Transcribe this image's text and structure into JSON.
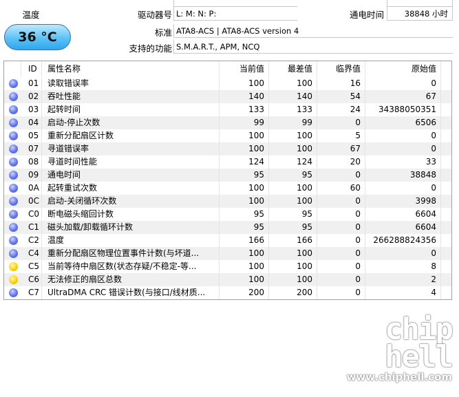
{
  "info": {
    "temperature_label": "温度",
    "temperature": "36 °C",
    "drive_letter_label": "驱动器号",
    "drive_letter": "L: M: N: P:",
    "power_on_label": "通电时间",
    "power_on": "38848 小时",
    "standard_label": "标准",
    "standard": "ATA8-ACS | ATA8-ACS version 4",
    "features_label": "支持的功能",
    "features": "S.M.A.R.T., APM, NCQ"
  },
  "table": {
    "headers": {
      "id": "ID",
      "name": "属性名称",
      "current": "当前值",
      "worst": "最差值",
      "threshold": "临界值",
      "raw": "原始值"
    },
    "rows": [
      {
        "status": "blue",
        "id": "01",
        "name": "读取错误率",
        "current": "100",
        "worst": "100",
        "threshold": "16",
        "raw": "0"
      },
      {
        "status": "blue",
        "id": "02",
        "name": "吞吐性能",
        "current": "140",
        "worst": "140",
        "threshold": "54",
        "raw": "67"
      },
      {
        "status": "blue",
        "id": "03",
        "name": "起转时间",
        "current": "133",
        "worst": "133",
        "threshold": "24",
        "raw": "34388050351"
      },
      {
        "status": "blue",
        "id": "04",
        "name": "启动-停止次数",
        "current": "99",
        "worst": "99",
        "threshold": "0",
        "raw": "6506"
      },
      {
        "status": "blue",
        "id": "05",
        "name": "重新分配扇区计数",
        "current": "100",
        "worst": "100",
        "threshold": "5",
        "raw": "0"
      },
      {
        "status": "blue",
        "id": "07",
        "name": "寻道错误率",
        "current": "100",
        "worst": "100",
        "threshold": "67",
        "raw": "0"
      },
      {
        "status": "blue",
        "id": "08",
        "name": "寻道时间性能",
        "current": "124",
        "worst": "124",
        "threshold": "20",
        "raw": "33"
      },
      {
        "status": "blue",
        "id": "09",
        "name": "通电时间",
        "current": "95",
        "worst": "95",
        "threshold": "0",
        "raw": "38848"
      },
      {
        "status": "blue",
        "id": "0A",
        "name": "起转重试次数",
        "current": "100",
        "worst": "100",
        "threshold": "60",
        "raw": "0"
      },
      {
        "status": "blue",
        "id": "0C",
        "name": "启动-关闭循环次数",
        "current": "100",
        "worst": "100",
        "threshold": "0",
        "raw": "3998"
      },
      {
        "status": "blue",
        "id": "C0",
        "name": "断电磁头缩回计数",
        "current": "95",
        "worst": "95",
        "threshold": "0",
        "raw": "6604"
      },
      {
        "status": "blue",
        "id": "C1",
        "name": "磁头加载/卸载循环计数",
        "current": "95",
        "worst": "95",
        "threshold": "0",
        "raw": "6604"
      },
      {
        "status": "blue",
        "id": "C2",
        "name": "温度",
        "current": "166",
        "worst": "166",
        "threshold": "0",
        "raw": "266288824356"
      },
      {
        "status": "blue",
        "id": "C4",
        "name": "重新分配扇区物理位置事件计数(与坏道...",
        "current": "100",
        "worst": "100",
        "threshold": "0",
        "raw": "0"
      },
      {
        "status": "yellow",
        "id": "C5",
        "name": "当前等待中扇区数(状态存疑/不稳定-等...",
        "current": "100",
        "worst": "100",
        "threshold": "0",
        "raw": "8"
      },
      {
        "status": "yellow",
        "id": "C6",
        "name": "无法修正的扇区总数",
        "current": "100",
        "worst": "100",
        "threshold": "0",
        "raw": "2"
      },
      {
        "status": "blue",
        "id": "C7",
        "name": "UltraDMA CRC 错误计数(与接口/线材质...",
        "current": "200",
        "worst": "200",
        "threshold": "0",
        "raw": "4"
      }
    ]
  },
  "watermark": {
    "logo": "chip hell",
    "url": "www.chiphell.com"
  }
}
